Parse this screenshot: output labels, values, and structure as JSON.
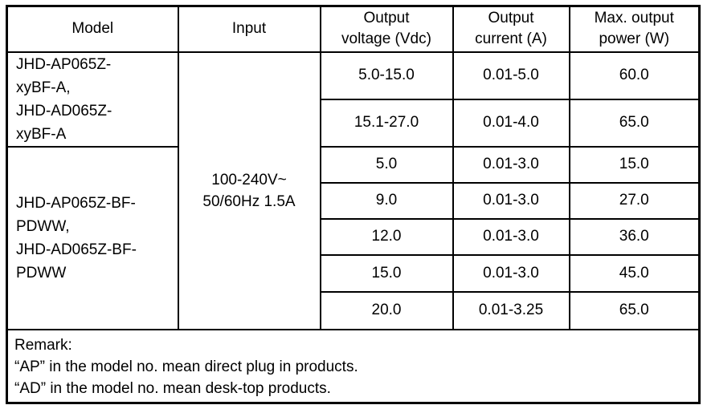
{
  "document": {
    "table": {
      "headers": {
        "model": "Model",
        "input": "Input",
        "output_voltage": [
          "Output",
          "voltage (Vdc)"
        ],
        "output_current": [
          "Output",
          "current (A)"
        ],
        "max_output_power": [
          "Max. output",
          "power (W)"
        ]
      },
      "model_groups": [
        {
          "lines": [
            "JHD-AP065Z-",
            "xyBF-A,",
            "JHD-AD065Z-",
            "xyBF-A"
          ]
        },
        {
          "lines": [
            "JHD-AP065Z-BF-",
            "PDWW,",
            "JHD-AD065Z-BF-",
            "PDWW"
          ]
        }
      ],
      "input_lines": [
        "100-240V~",
        "50/60Hz 1.5A"
      ],
      "rows": [
        {
          "voltage": "5.0-15.0",
          "current": "0.01-5.0",
          "power": "60.0"
        },
        {
          "voltage": "15.1-27.0",
          "current": "0.01-4.0",
          "power": "65.0"
        },
        {
          "voltage": "5.0",
          "current": "0.01-3.0",
          "power": "15.0"
        },
        {
          "voltage": "9.0",
          "current": "0.01-3.0",
          "power": "27.0"
        },
        {
          "voltage": "12.0",
          "current": "0.01-3.0",
          "power": "36.0"
        },
        {
          "voltage": "15.0",
          "current": "0.01-3.0",
          "power": "45.0"
        },
        {
          "voltage": "20.0",
          "current": "0.01-3.25",
          "power": "65.0"
        }
      ],
      "remark": {
        "lines": [
          "Remark:",
          "“AP” in the model no. mean direct plug in products.",
          "“AD” in the model no. mean desk-top products."
        ]
      }
    },
    "colors": {
      "border": "#000000",
      "text": "#000000",
      "background": "#ffffff"
    }
  }
}
